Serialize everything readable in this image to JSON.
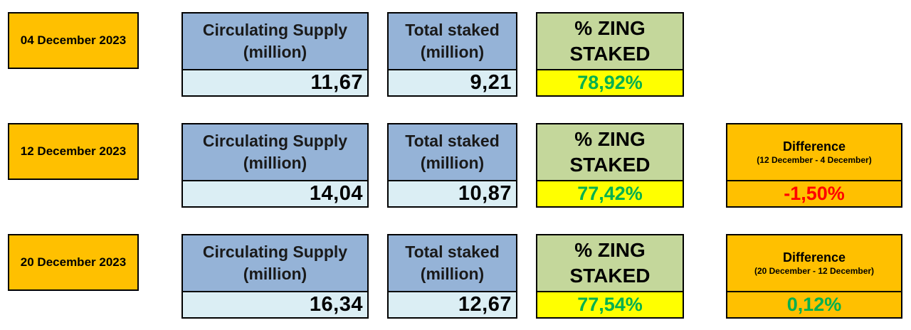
{
  "rows": [
    {
      "date": "04 December 2023",
      "supply_label": [
        "Circulating Supply",
        "(million)"
      ],
      "supply": "11,67",
      "staked_label": [
        "Total staked",
        "(million)"
      ],
      "staked": "9,21",
      "pct_label": [
        "% ZING",
        "STAKED"
      ],
      "pct": "78,92%"
    },
    {
      "date": "12 December 2023",
      "supply_label": [
        "Circulating Supply",
        "(million)"
      ],
      "supply": "14,04",
      "staked_label": [
        "Total staked",
        "(million)"
      ],
      "staked": "10,87",
      "pct_label": [
        "% ZING",
        "STAKED"
      ],
      "pct": "77,42%",
      "diff_title": "Difference",
      "diff_sub": "(12 December - 4 December)",
      "diff": "-1,50%",
      "diff_color": "#ff0000"
    },
    {
      "date": "20 December 2023",
      "supply_label": [
        "Circulating Supply",
        "(million)"
      ],
      "supply": "16,34",
      "staked_label": [
        "Total staked",
        "(million)"
      ],
      "staked": "12,67",
      "pct_label": [
        "% ZING",
        "STAKED"
      ],
      "pct": "77,54%",
      "diff_title": "Difference",
      "diff_sub": "(20 December - 12 December)",
      "diff": "0,12%",
      "diff_color": "#00b050"
    }
  ]
}
